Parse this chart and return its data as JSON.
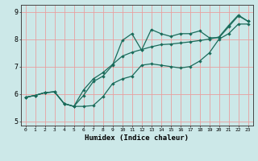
{
  "title": "",
  "xlabel": "Humidex (Indice chaleur)",
  "xlim": [
    -0.5,
    23.5
  ],
  "ylim": [
    4.85,
    9.25
  ],
  "xticks": [
    0,
    1,
    2,
    3,
    4,
    5,
    6,
    7,
    8,
    9,
    10,
    11,
    12,
    13,
    14,
    15,
    16,
    17,
    18,
    19,
    20,
    21,
    22,
    23
  ],
  "yticks": [
    5,
    6,
    7,
    8,
    9
  ],
  "bg_color": "#cce8e8",
  "grid_color": "#e8a0a0",
  "line_color": "#1a6b5a",
  "line1_x": [
    0,
    1,
    2,
    3,
    4,
    5,
    6,
    7,
    8,
    9,
    10,
    11,
    12,
    13,
    14,
    15,
    16,
    17,
    18,
    19,
    20,
    21,
    22,
    23
  ],
  "line1_y": [
    5.88,
    5.95,
    6.05,
    6.08,
    5.65,
    5.55,
    5.55,
    5.58,
    5.9,
    6.38,
    6.55,
    6.65,
    7.05,
    7.1,
    7.05,
    7.0,
    6.95,
    7.0,
    7.2,
    7.5,
    8.0,
    8.2,
    8.55,
    8.55
  ],
  "line2_x": [
    0,
    1,
    2,
    3,
    4,
    5,
    6,
    7,
    8,
    9,
    10,
    11,
    12,
    13,
    14,
    15,
    16,
    17,
    18,
    19,
    20,
    21,
    22,
    23
  ],
  "line2_y": [
    5.88,
    5.95,
    6.05,
    6.08,
    5.65,
    5.55,
    5.95,
    6.45,
    6.65,
    7.05,
    7.95,
    8.2,
    7.6,
    8.35,
    8.2,
    8.1,
    8.2,
    8.2,
    8.3,
    8.05,
    8.05,
    8.45,
    8.85,
    8.65
  ],
  "line3_x": [
    0,
    1,
    2,
    3,
    4,
    5,
    6,
    7,
    8,
    9,
    10,
    11,
    12,
    13,
    14,
    15,
    16,
    17,
    18,
    19,
    20,
    21,
    22,
    23
  ],
  "line3_y": [
    5.88,
    5.95,
    6.05,
    6.08,
    5.65,
    5.55,
    6.15,
    6.55,
    6.78,
    7.08,
    7.38,
    7.52,
    7.62,
    7.72,
    7.8,
    7.82,
    7.86,
    7.9,
    7.95,
    8.0,
    8.08,
    8.5,
    8.88,
    8.65
  ]
}
